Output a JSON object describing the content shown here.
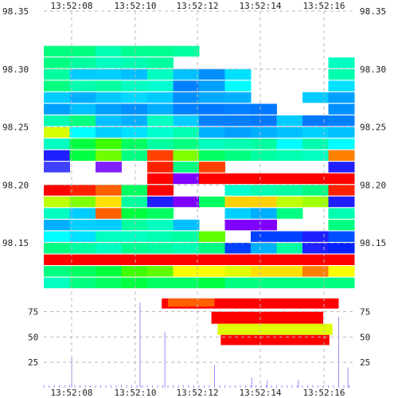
{
  "chart_data": {
    "type": "heatmap",
    "title": "",
    "xlabel": "",
    "x_ticks": [
      "13:52:08",
      "13:52:10",
      "13:52:12",
      "13:52:14",
      "13:52:16"
    ],
    "price_panel": {
      "ylim": [
        98.115,
        98.35
      ],
      "y_ticks": [
        "98.35",
        "98.30",
        "98.25",
        "98.20",
        "98.15"
      ],
      "y_tick_values": [
        98.35,
        98.3,
        98.25,
        98.2,
        98.15
      ],
      "grid": true,
      "rows": [
        {
          "price": 98.315,
          "colors": [
            "#00ff80",
            "#00ff80",
            "#00ffb0",
            "#00ff90",
            "#00ff90",
            "#00ffa0",
            "#ffffff",
            "#ffffff",
            "#ffffff",
            "#ffffff",
            "#ffffff",
            "#ffffff"
          ]
        },
        {
          "price": 98.305,
          "colors": [
            "#00ff80",
            "#00ffa0",
            "#00ffc0",
            "#00ffb0",
            "#00ffa0",
            "#ffffff",
            "#ffffff",
            "#ffffff",
            "#ffffff",
            "#ffffff",
            "#ffffff",
            "#00ffc0"
          ]
        },
        {
          "price": 98.295,
          "colors": [
            "#00ffa0",
            "#00ccff",
            "#00d0ff",
            "#00c0ff",
            "#00ffc0",
            "#00c0ff",
            "#0090ff",
            "#00e0ff",
            "#ffffff",
            "#ffffff",
            "#ffffff",
            "#00ffb0"
          ]
        },
        {
          "price": 98.285,
          "colors": [
            "#00ff80",
            "#00ffb0",
            "#00ffa0",
            "#00ffc0",
            "#00ffd0",
            "#0080ff",
            "#00a0ff",
            "#00ffff",
            "#ffffff",
            "#ffffff",
            "#ffffff",
            "#00e0ff"
          ]
        },
        {
          "price": 98.275,
          "colors": [
            "#00ccff",
            "#00b0ff",
            "#00c8ff",
            "#00d8ff",
            "#00ccff",
            "#0090ff",
            "#00aaff",
            "#00b0ff",
            "#ffffff",
            "#ffffff",
            "#00ccff",
            "#00a0ff"
          ]
        },
        {
          "price": 98.265,
          "colors": [
            "#00a0ff",
            "#00c0ff",
            "#00a0ff",
            "#0090ff",
            "#00b0ff",
            "#0080ff",
            "#0078ff",
            "#0080ff",
            "#0078ff",
            "#ffffff",
            "#ffffff",
            "#0090ff"
          ]
        },
        {
          "price": 98.255,
          "colors": [
            "#00ffb0",
            "#00ff80",
            "#00c0ff",
            "#00b0ff",
            "#00ffc0",
            "#00ccff",
            "#0080ff",
            "#0080ff",
            "#0078ff",
            "#00ccff",
            "#0078ff",
            "#0080ff"
          ]
        },
        {
          "price": 98.245,
          "colors": [
            "#d8ff00",
            "#00ffff",
            "#00d0ff",
            "#00e0ff",
            "#00ffd0",
            "#00ffb0",
            "#00b0ff",
            "#00a0ff",
            "#00b0ff",
            "#00c0ff",
            "#00d0ff",
            "#00c0ff"
          ]
        },
        {
          "price": 98.235,
          "colors": [
            "#00ffc0",
            "#00ff40",
            "#40ff00",
            "#00ff60",
            "#00ffa0",
            "#00ff80",
            "#00ffc0",
            "#00ffb0",
            "#00ffa0",
            "#00ffff",
            "#00ffb0",
            "#00ffff"
          ]
        },
        {
          "price": 98.225,
          "colors": [
            "#2020ff",
            "#00ff40",
            "#70ff00",
            "#00ff80",
            "#ff4000",
            "#80ff00",
            "#00ff60",
            "#00ff80",
            "#00ffa0",
            "#00ffb0",
            "#00ffc0",
            "#ff8000"
          ]
        },
        {
          "price": 98.215,
          "colors": [
            "#4040ff",
            "#ffffff",
            "#8020ff",
            "#ffffff",
            "#ff2000",
            "#00ff80",
            "#ff4000",
            "#ffffff",
            "#ffffff",
            "#ffffff",
            "#ffffff",
            "#2020ff"
          ]
        },
        {
          "price": 98.205,
          "colors": [
            "#ffffff",
            "#ffffff",
            "#ffffff",
            "#ffffff",
            "#ff0000",
            "#8000ff",
            "#ff0000",
            "#ff0000",
            "#ff0000",
            "#ff0000",
            "#ff0000",
            "#ff0000"
          ]
        },
        {
          "price": 98.195,
          "colors": [
            "#ff0000",
            "#ff2000",
            "#ff6000",
            "#00ff60",
            "#ff0000",
            "#ffffff",
            "#ffffff",
            "#00ffd0",
            "#00ffb0",
            "#00ffa0",
            "#00ff80",
            "#ff2000"
          ]
        },
        {
          "price": 98.185,
          "colors": [
            "#c0ff00",
            "#80ff00",
            "#ffe000",
            "#00ffa0",
            "#2020ff",
            "#8000ff",
            "#00ff60",
            "#ffd000",
            "#ffd000",
            "#c0ff00",
            "#a0ff00",
            "#2020ff"
          ]
        },
        {
          "price": 98.175,
          "colors": [
            "#00ffc0",
            "#00ccff",
            "#ff6000",
            "#00ff40",
            "#00ff60",
            "#ffffff",
            "#ffffff",
            "#00d0ff",
            "#00b0ff",
            "#00ff80",
            "#ffffff",
            "#00ffb0"
          ]
        },
        {
          "price": 98.165,
          "colors": [
            "#00b0ff",
            "#00d0ff",
            "#00ccff",
            "#00ffa0",
            "#00ffc0",
            "#00c0ff",
            "#ffffff",
            "#8000ff",
            "#8000ff",
            "#ffffff",
            "#ffffff",
            "#00ff80"
          ]
        },
        {
          "price": 98.155,
          "colors": [
            "#00ffff",
            "#00e0ff",
            "#00ffc0",
            "#00ffc0",
            "#00ffb0",
            "#00ffa0",
            "#60ff00",
            "#ffffff",
            "#0040ff",
            "#0040ff",
            "#2020ff",
            "#0050ff"
          ]
        },
        {
          "price": 98.145,
          "colors": [
            "#00ff80",
            "#00ffa0",
            "#00ffc0",
            "#00ff90",
            "#00ffa0",
            "#00ffb0",
            "#00ff80",
            "#0040ff",
            "#00b0ff",
            "#00ffa0",
            "#2020ff",
            "#0020ff"
          ]
        },
        {
          "price": 98.135,
          "colors": [
            "#ff0000",
            "#ff0000",
            "#ff0000",
            "#ff0000",
            "#ff0000",
            "#ff0000",
            "#ff0000",
            "#ff0000",
            "#ff0000",
            "#ff0000",
            "#ff0000",
            "#ff0000"
          ]
        },
        {
          "price": 98.125,
          "colors": [
            "#00ff80",
            "#00ff60",
            "#00ff40",
            "#40ff00",
            "#60ff00",
            "#ffff00",
            "#ffff00",
            "#e0ff00",
            "#ffe000",
            "#ffe000",
            "#ff8000",
            "#ffff00"
          ]
        },
        {
          "price": 98.115,
          "colors": [
            "#00ffc0",
            "#00ff80",
            "#00ff60",
            "#00ff40",
            "#00ff60",
            "#00ff60",
            "#00ff40",
            "#00ff80",
            "#00ff80",
            "#00ff80",
            "#00ff80",
            "#00ff80"
          ]
        }
      ]
    },
    "volume_panel": {
      "ylim": [
        0,
        95
      ],
      "y_ticks": [
        "75",
        "50",
        "25"
      ],
      "y_tick_values": [
        75,
        50,
        25
      ],
      "grid": true,
      "bars": [
        {
          "t0": 0.38,
          "t1": 0.95,
          "y0": 78,
          "y1": 88,
          "color": "#ff0000"
        },
        {
          "t0": 0.4,
          "t1": 0.55,
          "y0": 80,
          "y1": 88,
          "color": "#ff6000"
        },
        {
          "t0": 0.54,
          "t1": 0.9,
          "y0": 63,
          "y1": 75,
          "color": "#ff0000"
        },
        {
          "t0": 0.56,
          "t1": 0.93,
          "y0": 52,
          "y1": 63,
          "color": "#e0ff00"
        },
        {
          "t0": 0.57,
          "t1": 0.92,
          "y0": 42,
          "y1": 52,
          "color": "#ff0000"
        }
      ],
      "spikes": [
        {
          "t": 0.09,
          "h": 30
        },
        {
          "t": 0.31,
          "h": 84
        },
        {
          "t": 0.39,
          "h": 55
        },
        {
          "t": 0.55,
          "h": 22
        },
        {
          "t": 0.67,
          "h": 10
        },
        {
          "t": 0.72,
          "h": 7
        },
        {
          "t": 0.82,
          "h": 8
        },
        {
          "t": 0.95,
          "h": 70
        },
        {
          "t": 0.98,
          "h": 20
        }
      ]
    }
  }
}
